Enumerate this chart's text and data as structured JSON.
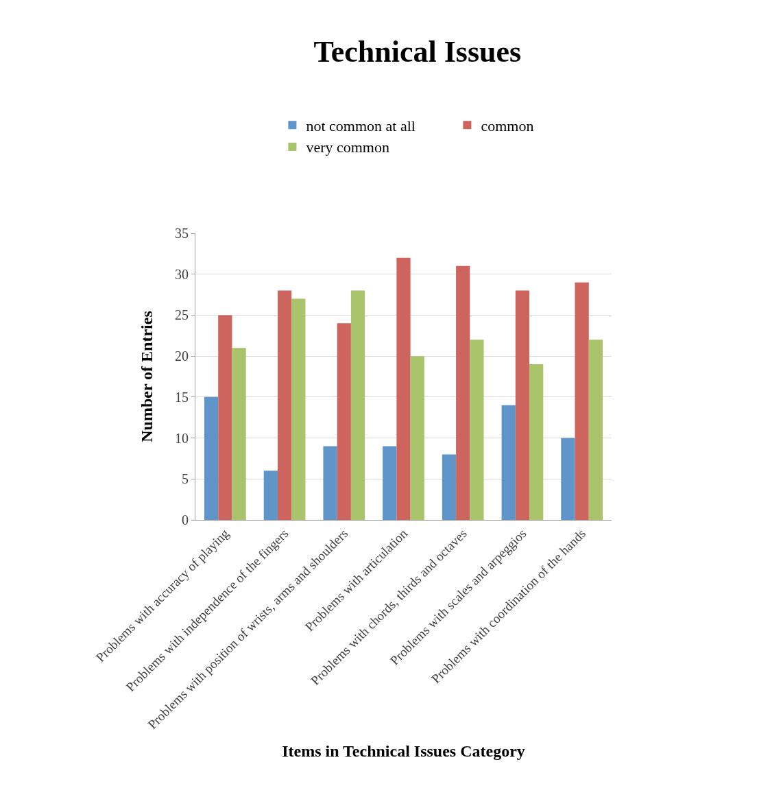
{
  "chart_data": {
    "type": "bar",
    "title": "Technical Issues",
    "xlabel": "Items in Technical Issues Category",
    "ylabel": "Number of Entries",
    "categories": [
      "Problems with accuracy of playing",
      "Problems with independence of the fingers",
      "Problems with position of wrists, arms and shoulders",
      "Problems with articulation",
      "Problems with chords, thirds and octaves",
      "Problems with scales and arpeggios",
      "Problems with coordination of the hands"
    ],
    "series": [
      {
        "name": "not common at all",
        "color": "#5f95c9",
        "values": [
          15,
          6,
          9,
          9,
          8,
          14,
          10
        ]
      },
      {
        "name": "common",
        "color": "#cd645e",
        "values": [
          25,
          28,
          24,
          32,
          31,
          28,
          29
        ]
      },
      {
        "name": "very common",
        "color": "#a9c46a",
        "values": [
          21,
          27,
          28,
          20,
          22,
          19,
          22
        ]
      }
    ],
    "ylim": [
      0,
      35
    ],
    "yticks": [
      0,
      5,
      10,
      15,
      20,
      25,
      30,
      35
    ],
    "grid": "y",
    "legend": "top"
  }
}
